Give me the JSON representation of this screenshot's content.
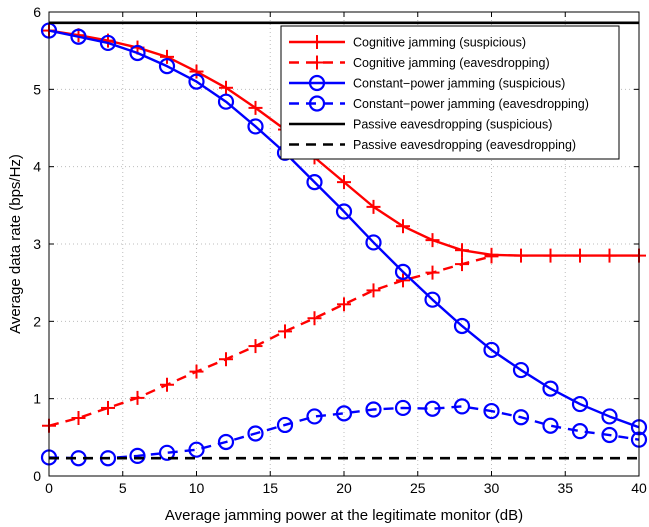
{
  "chart_data": {
    "type": "line",
    "xlabel": "Average jamming power at the legitimate monitor (dB)",
    "ylabel": "Average data rate (bps/Hz)",
    "xlim": [
      0,
      40
    ],
    "ylim": [
      0,
      6
    ],
    "xticks": [
      0,
      5,
      10,
      15,
      20,
      25,
      30,
      35,
      40
    ],
    "yticks": [
      0,
      1,
      2,
      3,
      4,
      5,
      6
    ],
    "grid": true,
    "legend_position": "top-right",
    "series": [
      {
        "name": "Cognitive jamming (suspicious)",
        "color": "#ff0000",
        "dash": "solid",
        "marker": "plus",
        "x": [
          0,
          2,
          4,
          6,
          8,
          10,
          12,
          14,
          16,
          18,
          20,
          22,
          24,
          26,
          28,
          30,
          32,
          34,
          36,
          38,
          40
        ],
        "y": [
          5.76,
          5.7,
          5.63,
          5.54,
          5.42,
          5.23,
          5.02,
          4.76,
          4.48,
          4.12,
          3.8,
          3.48,
          3.23,
          3.05,
          2.92,
          2.86,
          2.85,
          2.85,
          2.85,
          2.85,
          2.85
        ]
      },
      {
        "name": "Cognitive jamming (eavesdropping)",
        "color": "#ff0000",
        "dash": "dashed",
        "marker": "plus",
        "x": [
          0,
          2,
          4,
          6,
          8,
          10,
          12,
          14,
          16,
          18,
          20,
          22,
          24,
          26,
          28,
          30
        ],
        "y": [
          0.65,
          0.75,
          0.88,
          1.01,
          1.18,
          1.35,
          1.51,
          1.68,
          1.87,
          2.04,
          2.22,
          2.4,
          2.53,
          2.63,
          2.74,
          2.84
        ]
      },
      {
        "name": "Constant−power jamming (suspicious)",
        "color": "#0000ff",
        "dash": "solid",
        "marker": "circle",
        "x": [
          0,
          2,
          4,
          6,
          8,
          10,
          12,
          14,
          16,
          18,
          20,
          22,
          24,
          26,
          28,
          30,
          32,
          34,
          36,
          38,
          40
        ],
        "y": [
          5.76,
          5.68,
          5.6,
          5.47,
          5.3,
          5.1,
          4.84,
          4.52,
          4.18,
          3.8,
          3.42,
          3.02,
          2.64,
          2.28,
          1.94,
          1.63,
          1.37,
          1.13,
          0.93,
          0.77,
          0.63
        ]
      },
      {
        "name": "Constant−power jamming (eavesdropping)",
        "color": "#0000ff",
        "dash": "dashed",
        "marker": "circle",
        "x": [
          0,
          2,
          4,
          6,
          8,
          10,
          12,
          14,
          16,
          18,
          20,
          22,
          24,
          26,
          28,
          30,
          32,
          34,
          36,
          38,
          40
        ],
        "y": [
          0.24,
          0.23,
          0.23,
          0.26,
          0.3,
          0.34,
          0.44,
          0.55,
          0.66,
          0.77,
          0.81,
          0.86,
          0.88,
          0.87,
          0.9,
          0.84,
          0.76,
          0.65,
          0.58,
          0.53,
          0.47
        ]
      },
      {
        "name": "Passive eavesdropping (suspicious)",
        "color": "#000000",
        "dash": "solid",
        "marker": "none",
        "x": [
          0,
          40
        ],
        "y": [
          5.86,
          5.86
        ]
      },
      {
        "name": "Passive eavesdropping (eavesdropping)",
        "color": "#000000",
        "dash": "dashed",
        "marker": "none",
        "x": [
          0,
          40
        ],
        "y": [
          0.23,
          0.23
        ]
      }
    ]
  }
}
